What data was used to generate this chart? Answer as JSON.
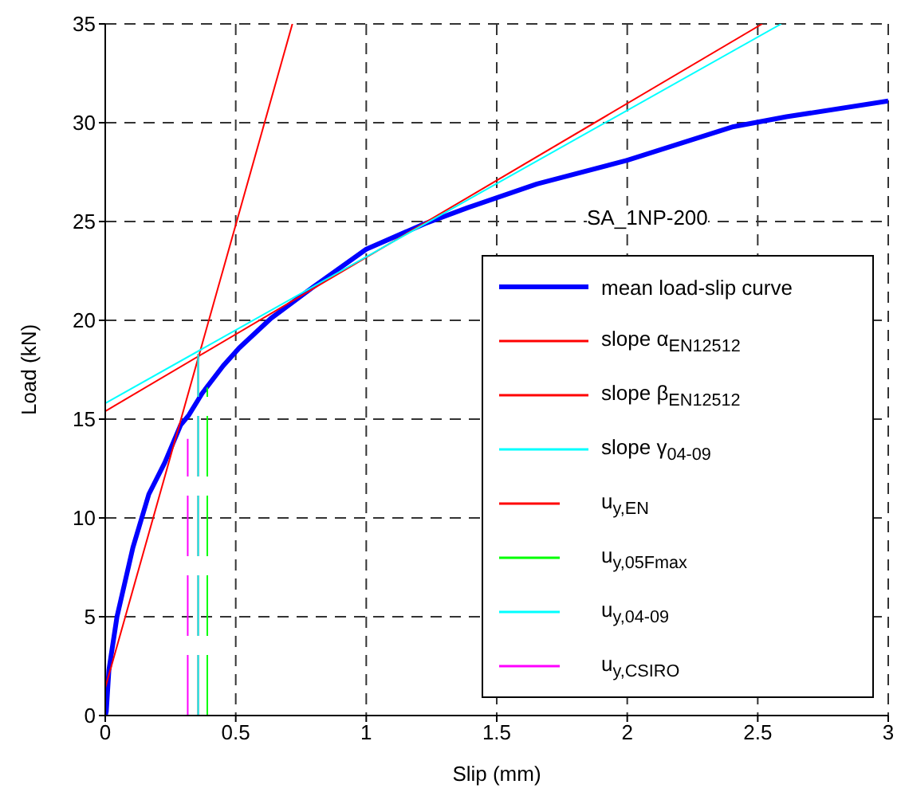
{
  "chart_data": {
    "type": "line",
    "xlabel": "Slip (mm)",
    "ylabel": "Load (kN)",
    "xlim": [
      0,
      3
    ],
    "xticks": [
      0,
      0.5,
      1,
      1.5,
      2,
      2.5,
      3
    ],
    "ylim": [
      0,
      35
    ],
    "yticks": [
      0,
      5,
      10,
      15,
      20,
      25,
      30,
      35
    ],
    "grid": true,
    "legend": "bottom right",
    "marker": "none",
    "annotations": [
      "SA_1NP-200"
    ],
    "series": [
      {
        "name": "mean load-slip curve",
        "color": "#0000ff",
        "x": [
          0,
          0.004,
          0.014,
          0.045,
          0.106,
          0.167,
          0.228,
          0.289,
          0.32,
          0.371,
          0.452,
          0.513,
          0.635,
          0.798,
          1.0,
          1.226,
          1.389,
          1.654,
          2.0,
          2.407,
          2.61,
          3.0
        ],
        "values": [
          0,
          0.2,
          2.3,
          5.0,
          8.5,
          11.2,
          12.8,
          14.7,
          15.2,
          16.3,
          17.7,
          18.6,
          20.1,
          21.7,
          23.6,
          24.9,
          25.7,
          26.9,
          28.1,
          29.8,
          30.3,
          31.1
        ],
        "line_style": "solid"
      },
      {
        "name": "slope α$_{EN12512}$",
        "color": "#ff0000",
        "x": [
          0,
          0.717
        ],
        "values": [
          1.4,
          35
        ],
        "line_style": "solid"
      },
      {
        "name": "slope β$_{EN12512}$",
        "color": "#ff0000",
        "x": [
          0,
          2.517
        ],
        "values": [
          15.4,
          35
        ],
        "line_style": "solid"
      },
      {
        "name": "slope γ$_{04-09}$",
        "color": "#00ffff",
        "x": [
          0,
          2.59
        ],
        "values": [
          15.8,
          35
        ],
        "line_style": "solid"
      },
      {
        "name": "u$_{y,EN}$",
        "color": "#ff0000",
        "x": [
          0.356,
          0.356
        ],
        "values": [
          0,
          18.3
        ],
        "line_style": "dashed"
      },
      {
        "name": "u$_{y,05Fmax}$",
        "color": "#00ff00",
        "x": [
          0.391,
          0.391
        ],
        "values": [
          0,
          16.6
        ],
        "line_style": "dashed"
      },
      {
        "name": "u$_{y,04-09}$",
        "color": "#00ffff",
        "x": [
          0.356,
          0.356
        ],
        "values": [
          0,
          18.3
        ],
        "line_style": "dashed"
      },
      {
        "name": "u$_{y,CSIRO}$",
        "color": "#ff00ff",
        "x": [
          0.316,
          0.316
        ],
        "values": [
          0,
          14
        ],
        "line_style": "dashed"
      }
    ]
  }
}
